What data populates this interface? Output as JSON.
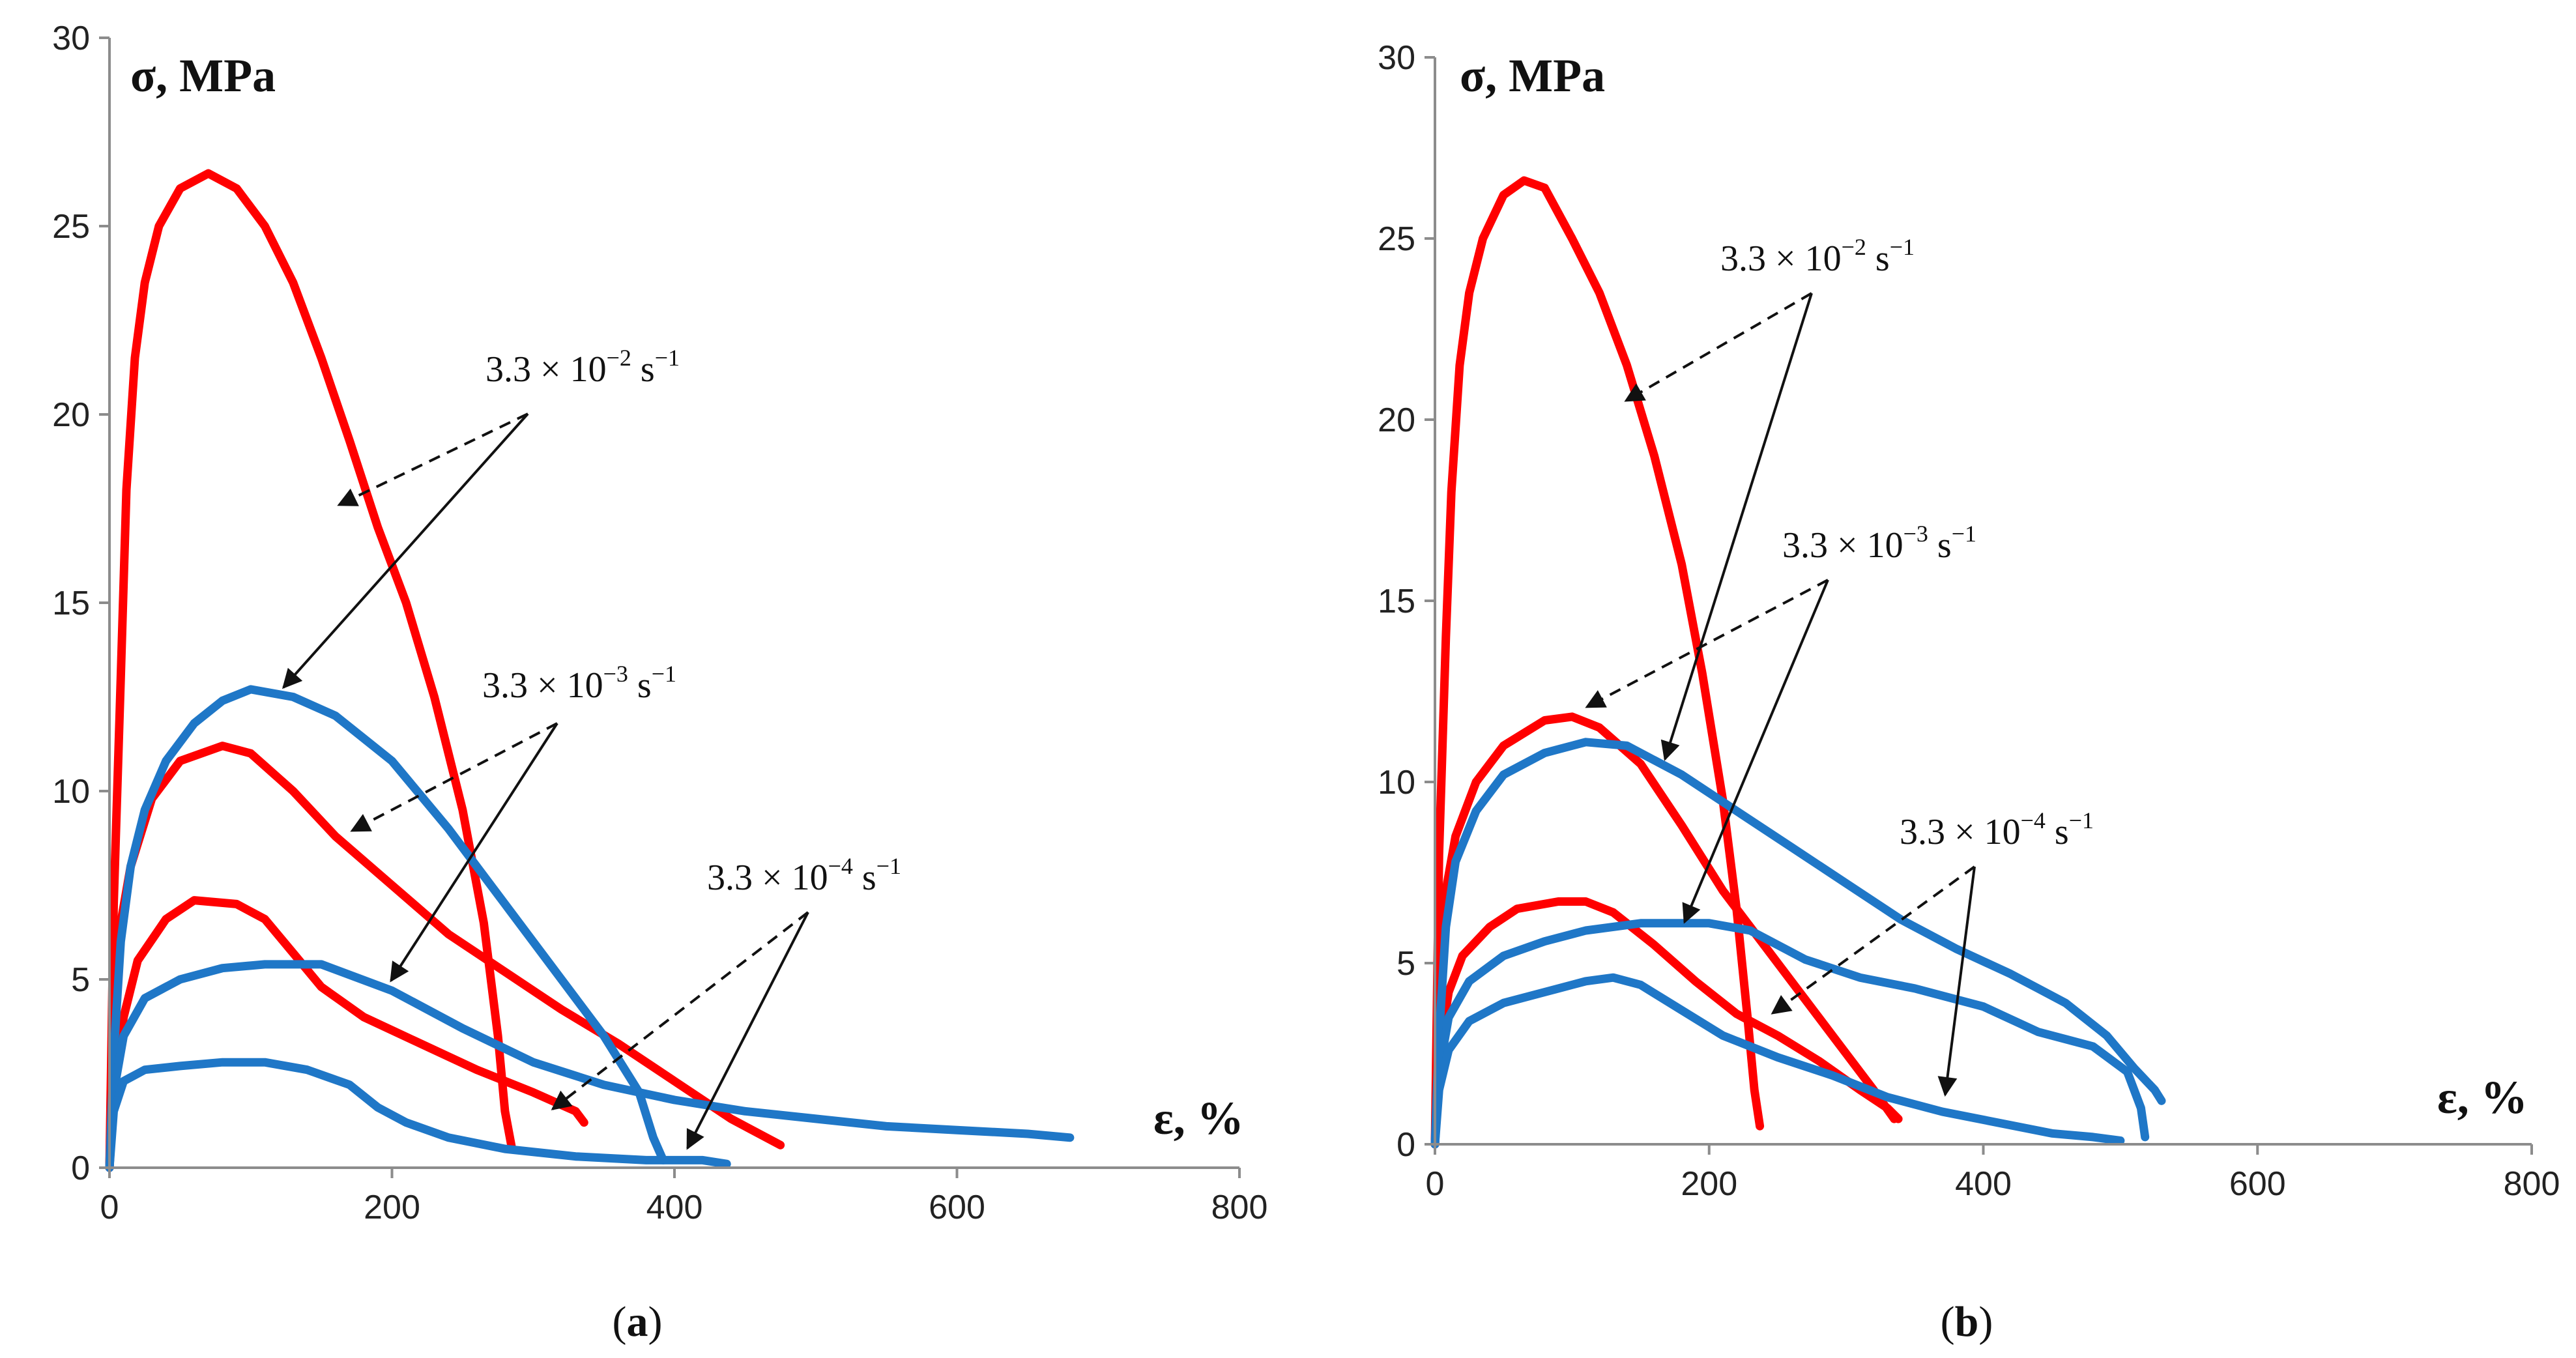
{
  "chart_data": [
    {
      "type": "line",
      "panel_label": {
        "open": "(",
        "letter": "a",
        "close": ")"
      },
      "ylabel": "σ, MPa",
      "xlabel": "ε, %",
      "xlim": [
        0,
        800
      ],
      "ylim": [
        0,
        30
      ],
      "xticks": [
        "0",
        "200",
        "400",
        "600",
        "800"
      ],
      "yticks": [
        "0",
        "5",
        "10",
        "15",
        "20",
        "25",
        "30"
      ],
      "grid": false,
      "colors": {
        "red": "#ff0000",
        "blue": "#1f77c7"
      },
      "series": [
        {
          "color": "red",
          "points": [
            [
              0,
              0
            ],
            [
              3,
              7
            ],
            [
              8,
              13
            ],
            [
              12,
              18
            ],
            [
              18,
              21.5
            ],
            [
              25,
              23.5
            ],
            [
              35,
              25
            ],
            [
              50,
              26
            ],
            [
              70,
              26.4
            ],
            [
              90,
              26
            ],
            [
              110,
              25
            ],
            [
              130,
              23.5
            ],
            [
              150,
              21.5
            ],
            [
              170,
              19.3
            ],
            [
              190,
              17
            ],
            [
              210,
              15
            ],
            [
              230,
              12.5
            ],
            [
              250,
              9.5
            ],
            [
              265,
              6.5
            ],
            [
              275,
              3.5
            ],
            [
              280,
              1.5
            ],
            [
              285,
              0.5
            ]
          ]
        },
        {
          "color": "red",
          "points": [
            [
              0,
              0
            ],
            [
              3,
              4
            ],
            [
              8,
              6.5
            ],
            [
              15,
              8
            ],
            [
              30,
              9.8
            ],
            [
              50,
              10.8
            ],
            [
              80,
              11.2
            ],
            [
              100,
              11
            ],
            [
              130,
              10
            ],
            [
              160,
              8.8
            ],
            [
              200,
              7.5
            ],
            [
              240,
              6.2
            ],
            [
              280,
              5.2
            ],
            [
              320,
              4.2
            ],
            [
              360,
              3.3
            ],
            [
              400,
              2.3
            ],
            [
              440,
              1.3
            ],
            [
              475,
              0.6
            ]
          ]
        },
        {
          "color": "red",
          "points": [
            [
              0,
              0
            ],
            [
              3,
              2
            ],
            [
              10,
              4
            ],
            [
              20,
              5.5
            ],
            [
              40,
              6.6
            ],
            [
              60,
              7.1
            ],
            [
              90,
              7
            ],
            [
              110,
              6.6
            ],
            [
              130,
              5.7
            ],
            [
              150,
              4.8
            ],
            [
              180,
              4
            ],
            [
              220,
              3.3
            ],
            [
              260,
              2.6
            ],
            [
              300,
              2
            ],
            [
              330,
              1.5
            ],
            [
              336,
              1.2
            ]
          ]
        },
        {
          "color": "blue",
          "points": [
            [
              0,
              0
            ],
            [
              3,
              3
            ],
            [
              8,
              6
            ],
            [
              15,
              8
            ],
            [
              25,
              9.5
            ],
            [
              40,
              10.8
            ],
            [
              60,
              11.8
            ],
            [
              80,
              12.4
            ],
            [
              100,
              12.7
            ],
            [
              130,
              12.5
            ],
            [
              160,
              12
            ],
            [
              200,
              10.8
            ],
            [
              240,
              9
            ],
            [
              280,
              7
            ],
            [
              320,
              5
            ],
            [
              350,
              3.5
            ],
            [
              375,
              2
            ],
            [
              385,
              0.8
            ],
            [
              392,
              0.2
            ]
          ]
        },
        {
          "color": "blue",
          "points": [
            [
              0,
              0
            ],
            [
              3,
              2
            ],
            [
              10,
              3.5
            ],
            [
              25,
              4.5
            ],
            [
              50,
              5
            ],
            [
              80,
              5.3
            ],
            [
              110,
              5.4
            ],
            [
              150,
              5.4
            ],
            [
              200,
              4.7
            ],
            [
              250,
              3.7
            ],
            [
              300,
              2.8
            ],
            [
              350,
              2.2
            ],
            [
              400,
              1.8
            ],
            [
              450,
              1.5
            ],
            [
              500,
              1.3
            ],
            [
              550,
              1.1
            ],
            [
              600,
              1
            ],
            [
              650,
              0.9
            ],
            [
              680,
              0.8
            ]
          ]
        },
        {
          "color": "blue",
          "points": [
            [
              0,
              0
            ],
            [
              3,
              1.5
            ],
            [
              10,
              2.3
            ],
            [
              25,
              2.6
            ],
            [
              50,
              2.7
            ],
            [
              80,
              2.8
            ],
            [
              110,
              2.8
            ],
            [
              140,
              2.6
            ],
            [
              170,
              2.2
            ],
            [
              190,
              1.6
            ],
            [
              210,
              1.2
            ],
            [
              240,
              0.8
            ],
            [
              280,
              0.5
            ],
            [
              330,
              0.3
            ],
            [
              380,
              0.2
            ],
            [
              420,
              0.2
            ],
            [
              437,
              0.1
            ]
          ]
        }
      ],
      "annotations": [
        {
          "base": "3.3 × 10",
          "exp": "−2",
          "unit": " s",
          "unit_exp": "−1"
        },
        {
          "base": "3.3 × 10",
          "exp": "−3",
          "unit": " s",
          "unit_exp": "−1"
        },
        {
          "base": "3.3 × 10",
          "exp": "−4",
          "unit": " s",
          "unit_exp": "−1"
        }
      ]
    },
    {
      "type": "line",
      "panel_label": {
        "open": "(",
        "letter": "b",
        "close": ")"
      },
      "ylabel": "σ, MPa",
      "xlabel": "ε, %",
      "xlim": [
        0,
        800
      ],
      "ylim": [
        0,
        30
      ],
      "xticks": [
        "0",
        "200",
        "400",
        "600",
        "800"
      ],
      "yticks": [
        "0",
        "5",
        "10",
        "15",
        "20",
        "25",
        "30"
      ],
      "grid": false,
      "colors": {
        "red": "#ff0000",
        "blue": "#1f77c7"
      },
      "series": [
        {
          "color": "red",
          "points": [
            [
              0,
              0
            ],
            [
              3,
              8
            ],
            [
              8,
              14
            ],
            [
              12,
              18
            ],
            [
              18,
              21.5
            ],
            [
              25,
              23.5
            ],
            [
              35,
              25
            ],
            [
              50,
              26.2
            ],
            [
              65,
              26.6
            ],
            [
              80,
              26.4
            ],
            [
              100,
              25
            ],
            [
              120,
              23.5
            ],
            [
              140,
              21.5
            ],
            [
              160,
              19
            ],
            [
              180,
              16
            ],
            [
              195,
              13
            ],
            [
              210,
              9.5
            ],
            [
              220,
              6.5
            ],
            [
              228,
              3.5
            ],
            [
              233,
              1.5
            ],
            [
              237,
              0.5
            ]
          ]
        },
        {
          "color": "red",
          "points": [
            [
              0,
              0
            ],
            [
              3,
              4
            ],
            [
              8,
              7
            ],
            [
              15,
              8.5
            ],
            [
              30,
              10
            ],
            [
              50,
              11
            ],
            [
              80,
              11.7
            ],
            [
              100,
              11.8
            ],
            [
              120,
              11.5
            ],
            [
              150,
              10.5
            ],
            [
              180,
              8.8
            ],
            [
              210,
              7
            ],
            [
              240,
              5.5
            ],
            [
              270,
              4
            ],
            [
              300,
              2.5
            ],
            [
              320,
              1.5
            ],
            [
              335,
              0.7
            ]
          ]
        },
        {
          "color": "red",
          "points": [
            [
              0,
              0
            ],
            [
              3,
              2.5
            ],
            [
              10,
              4.2
            ],
            [
              20,
              5.2
            ],
            [
              40,
              6
            ],
            [
              60,
              6.5
            ],
            [
              90,
              6.7
            ],
            [
              110,
              6.7
            ],
            [
              130,
              6.4
            ],
            [
              160,
              5.5
            ],
            [
              190,
              4.5
            ],
            [
              220,
              3.6
            ],
            [
              250,
              3
            ],
            [
              280,
              2.3
            ],
            [
              310,
              1.5
            ],
            [
              330,
              1
            ],
            [
              338,
              0.7
            ]
          ]
        },
        {
          "color": "blue",
          "points": [
            [
              0,
              0
            ],
            [
              3,
              3
            ],
            [
              8,
              6
            ],
            [
              15,
              7.8
            ],
            [
              30,
              9.2
            ],
            [
              50,
              10.2
            ],
            [
              80,
              10.8
            ],
            [
              110,
              11.1
            ],
            [
              140,
              11
            ],
            [
              180,
              10.2
            ],
            [
              220,
              9.2
            ],
            [
              260,
              8.2
            ],
            [
              300,
              7.2
            ],
            [
              340,
              6.2
            ],
            [
              380,
              5.4
            ],
            [
              420,
              4.7
            ],
            [
              460,
              3.9
            ],
            [
              490,
              3
            ],
            [
              510,
              2.1
            ],
            [
              525,
              1.5
            ],
            [
              530,
              1.2
            ]
          ]
        },
        {
          "color": "blue",
          "points": [
            [
              0,
              0
            ],
            [
              3,
              2
            ],
            [
              10,
              3.5
            ],
            [
              25,
              4.5
            ],
            [
              50,
              5.2
            ],
            [
              80,
              5.6
            ],
            [
              110,
              5.9
            ],
            [
              150,
              6.1
            ],
            [
              200,
              6.1
            ],
            [
              230,
              5.9
            ],
            [
              270,
              5.1
            ],
            [
              310,
              4.6
            ],
            [
              350,
              4.3
            ],
            [
              400,
              3.8
            ],
            [
              440,
              3.1
            ],
            [
              480,
              2.7
            ],
            [
              505,
              2
            ],
            [
              515,
              1
            ],
            [
              518,
              0.2
            ]
          ]
        },
        {
          "color": "blue",
          "points": [
            [
              0,
              0
            ],
            [
              3,
              1.5
            ],
            [
              10,
              2.6
            ],
            [
              25,
              3.4
            ],
            [
              50,
              3.9
            ],
            [
              80,
              4.2
            ],
            [
              110,
              4.5
            ],
            [
              130,
              4.6
            ],
            [
              150,
              4.4
            ],
            [
              180,
              3.7
            ],
            [
              210,
              3
            ],
            [
              250,
              2.4
            ],
            [
              290,
              1.9
            ],
            [
              330,
              1.3
            ],
            [
              370,
              0.9
            ],
            [
              410,
              0.6
            ],
            [
              450,
              0.3
            ],
            [
              480,
              0.2
            ],
            [
              500,
              0.1
            ]
          ]
        }
      ],
      "annotations": [
        {
          "base": "3.3 × 10",
          "exp": "−2",
          "unit": " s",
          "unit_exp": "−1"
        },
        {
          "base": "3.3 × 10",
          "exp": "−3",
          "unit": " s",
          "unit_exp": "−1"
        },
        {
          "base": "3.3 × 10",
          "exp": "−4",
          "unit": " s",
          "unit_exp": "−1"
        }
      ]
    }
  ]
}
